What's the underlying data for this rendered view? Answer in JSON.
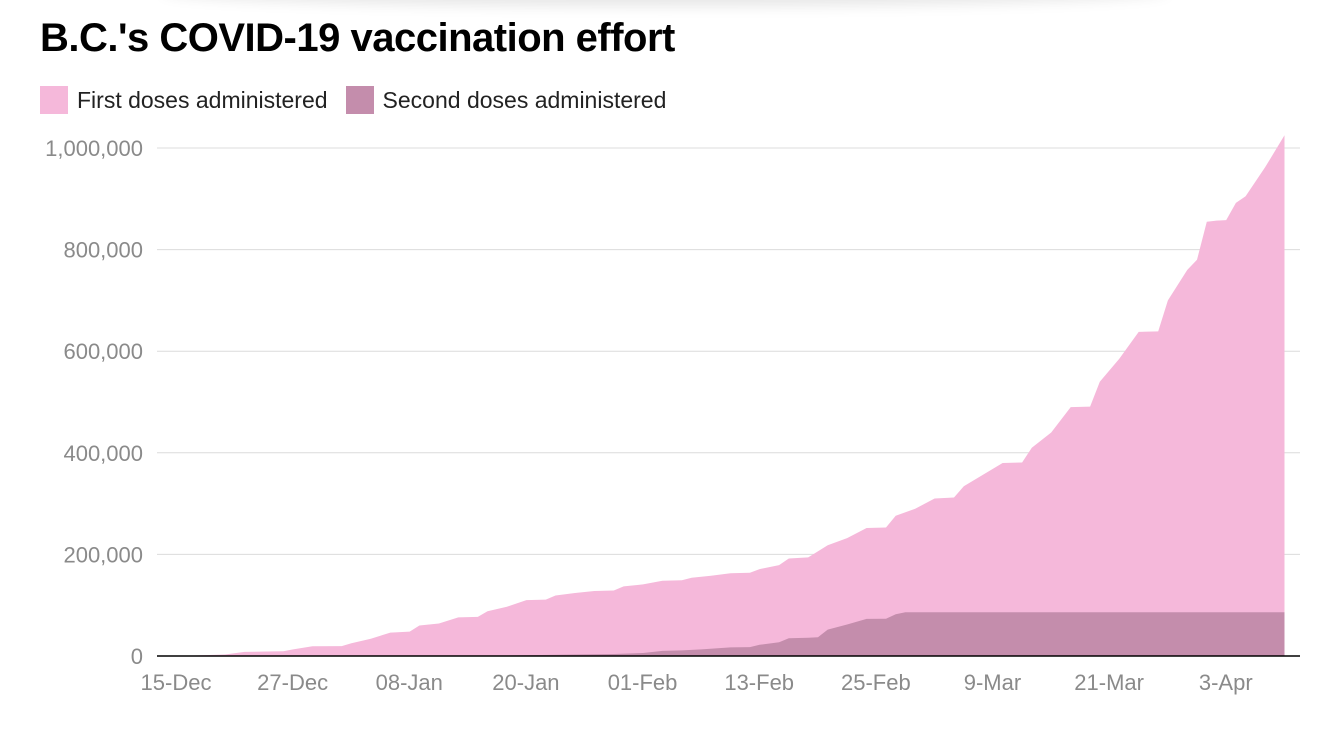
{
  "chart_data": {
    "type": "area",
    "title": "B.C.'s COVID-19 vaccination effort",
    "xlabel": "",
    "ylabel": "",
    "x_start": "2020-12-15",
    "x_end": "2021-04-10",
    "x_tick_labels": [
      "15-Dec",
      "27-Dec",
      "08-Jan",
      "20-Jan",
      "01-Feb",
      "13-Feb",
      "25-Feb",
      "9-Mar",
      "21-Mar",
      "3-Apr"
    ],
    "y_ticks": [
      0,
      200000,
      400000,
      600000,
      800000,
      1000000
    ],
    "y_tick_labels": [
      "0",
      "200,000",
      "400,000",
      "600,000",
      "800,000",
      "1,000,000"
    ],
    "ylim": [
      0,
      1000000
    ],
    "grid": true,
    "legend": "top-left",
    "series": [
      {
        "name": "First doses administered",
        "color": "#f5b8da",
        "points": [
          [
            "2020-12-15",
            0
          ],
          [
            "2020-12-18",
            500
          ],
          [
            "2020-12-22",
            3000
          ],
          [
            "2020-12-24",
            8000
          ],
          [
            "2020-12-27",
            9000
          ],
          [
            "2020-12-28",
            9500
          ],
          [
            "2020-12-29",
            13000
          ],
          [
            "2020-12-31",
            19000
          ],
          [
            "2021-01-03",
            19500
          ],
          [
            "2021-01-04",
            25000
          ],
          [
            "2021-01-06",
            34000
          ],
          [
            "2021-01-08",
            46000
          ],
          [
            "2021-01-10",
            48000
          ],
          [
            "2021-01-11",
            60000
          ],
          [
            "2021-01-13",
            64000
          ],
          [
            "2021-01-15",
            76000
          ],
          [
            "2021-01-17",
            77000
          ],
          [
            "2021-01-18",
            88000
          ],
          [
            "2021-01-20",
            97000
          ],
          [
            "2021-01-22",
            110000
          ],
          [
            "2021-01-24",
            111000
          ],
          [
            "2021-01-25",
            119000
          ],
          [
            "2021-01-27",
            124000
          ],
          [
            "2021-01-29",
            128000
          ],
          [
            "2021-01-31",
            129000
          ],
          [
            "2021-02-01",
            137000
          ],
          [
            "2021-02-03",
            141000
          ],
          [
            "2021-02-05",
            148000
          ],
          [
            "2021-02-07",
            149000
          ],
          [
            "2021-02-08",
            154000
          ],
          [
            "2021-02-10",
            158000
          ],
          [
            "2021-02-12",
            163000
          ],
          [
            "2021-02-14",
            164000
          ],
          [
            "2021-02-15",
            171000
          ],
          [
            "2021-02-17",
            179000
          ],
          [
            "2021-02-18",
            192000
          ],
          [
            "2021-02-20",
            194000
          ],
          [
            "2021-02-22",
            218000
          ],
          [
            "2021-02-24",
            232000
          ],
          [
            "2021-02-26",
            252000
          ],
          [
            "2021-02-28",
            253000
          ],
          [
            "2021-03-01",
            276000
          ],
          [
            "2021-03-03",
            290000
          ],
          [
            "2021-03-05",
            310000
          ],
          [
            "2021-03-07",
            312000
          ],
          [
            "2021-03-08",
            334000
          ],
          [
            "2021-03-10",
            357000
          ],
          [
            "2021-03-12",
            380000
          ],
          [
            "2021-03-14",
            381000
          ],
          [
            "2021-03-15",
            410000
          ],
          [
            "2021-03-17",
            440000
          ],
          [
            "2021-03-19",
            490000
          ],
          [
            "2021-03-21",
            491000
          ],
          [
            "2021-03-22",
            540000
          ],
          [
            "2021-03-24",
            585000
          ],
          [
            "2021-03-26",
            638000
          ],
          [
            "2021-03-28",
            639000
          ],
          [
            "2021-03-29",
            700000
          ],
          [
            "2021-03-31",
            760000
          ],
          [
            "2021-04-01",
            780000
          ],
          [
            "2021-04-02",
            855000
          ],
          [
            "2021-04-03",
            857000
          ],
          [
            "2021-04-04",
            858000
          ],
          [
            "2021-04-05",
            892000
          ],
          [
            "2021-04-06",
            905000
          ],
          [
            "2021-04-08",
            962000
          ],
          [
            "2021-04-10",
            1025000
          ]
        ]
      },
      {
        "name": "Second doses administered",
        "color": "#c48dac",
        "points": [
          [
            "2020-12-15",
            0
          ],
          [
            "2021-01-10",
            0
          ],
          [
            "2021-01-20",
            1000
          ],
          [
            "2021-01-27",
            3000
          ],
          [
            "2021-01-31",
            4000
          ],
          [
            "2021-02-03",
            6000
          ],
          [
            "2021-02-05",
            10000
          ],
          [
            "2021-02-07",
            11000
          ],
          [
            "2021-02-09",
            13000
          ],
          [
            "2021-02-12",
            17000
          ],
          [
            "2021-02-14",
            17500
          ],
          [
            "2021-02-15",
            22000
          ],
          [
            "2021-02-17",
            27000
          ],
          [
            "2021-02-18",
            35000
          ],
          [
            "2021-02-20",
            36000
          ],
          [
            "2021-02-21",
            37000
          ],
          [
            "2021-02-22",
            52000
          ],
          [
            "2021-02-24",
            62000
          ],
          [
            "2021-02-26",
            73000
          ],
          [
            "2021-02-28",
            73500
          ],
          [
            "2021-03-01",
            82000
          ],
          [
            "2021-03-02",
            86000
          ],
          [
            "2021-04-10",
            86000
          ]
        ]
      }
    ]
  }
}
